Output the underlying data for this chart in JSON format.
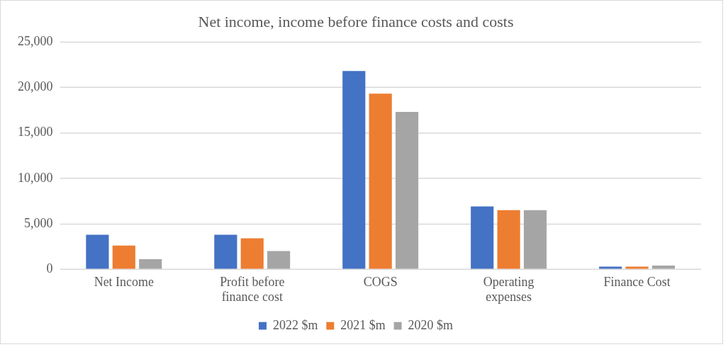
{
  "chart_data": {
    "type": "bar",
    "title": "Net income, income before finance costs and costs",
    "categories": [
      "Net Income",
      "Profit before finance cost",
      "COGS",
      "Operating expenses",
      "Finance Cost"
    ],
    "series": [
      {
        "name": "2022 $m",
        "color": "#4472c4",
        "values": [
          3800,
          3800,
          21800,
          6900,
          300
        ]
      },
      {
        "name": "2021 $m",
        "color": "#ed7d31",
        "values": [
          2600,
          3400,
          19300,
          6500,
          300
        ]
      },
      {
        "name": "2020 $m",
        "color": "#a5a5a5",
        "values": [
          1100,
          2000,
          17300,
          6500,
          400
        ]
      }
    ],
    "ylim": [
      0,
      25000
    ],
    "yticks": [
      0,
      {
        "value": 5000,
        "label": "5,000"
      },
      {
        "value": 10000,
        "label": "10,000"
      },
      {
        "value": 15000,
        "label": "15,000"
      },
      {
        "value": 20000,
        "label": "20,000"
      },
      {
        "value": 25000,
        "label": "25,000"
      }
    ],
    "grid": "y",
    "legend": "bottom"
  }
}
